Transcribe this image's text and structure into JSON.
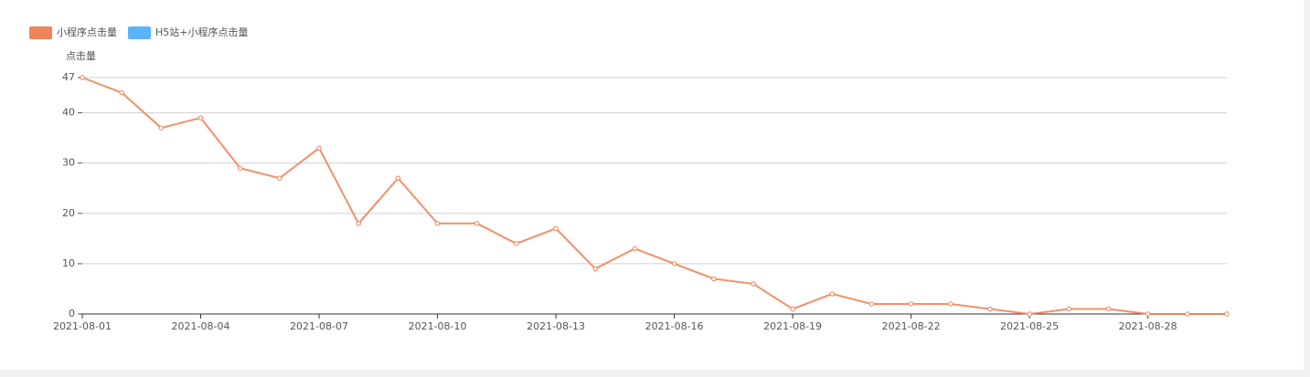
{
  "chart_data": {
    "type": "line",
    "y_label": "点击量",
    "categories": [
      "2021-08-01",
      null,
      null,
      "2021-08-04",
      null,
      null,
      "2021-08-07",
      null,
      null,
      "2021-08-10",
      null,
      null,
      "2021-08-13",
      null,
      null,
      "2021-08-16",
      null,
      null,
      "2021-08-19",
      null,
      null,
      "2021-08-22",
      null,
      null,
      "2021-08-25",
      null,
      null,
      "2021-08-28",
      null,
      null
    ],
    "series": [
      {
        "name": "小程序点击量",
        "color": "#f0845a",
        "values": [
          47,
          44,
          37,
          39,
          29,
          27,
          33,
          18,
          27,
          18,
          18,
          14,
          17,
          9,
          13,
          10,
          7,
          6,
          1,
          4,
          2,
          2,
          2,
          1,
          0,
          1,
          1,
          0,
          0,
          0
        ]
      },
      {
        "name": "H5站+小程序点击量",
        "color": "#58b4ff",
        "values": [
          null,
          null,
          null,
          null,
          null,
          null,
          null,
          null,
          null,
          null,
          null,
          null,
          null,
          null,
          null,
          null,
          null,
          null,
          null,
          null,
          null,
          null,
          null,
          null,
          null,
          null,
          null,
          null,
          null,
          null
        ]
      }
    ],
    "ylim": [
      0,
      47
    ],
    "yticks": [
      0,
      10,
      20,
      30,
      40,
      47
    ],
    "grid": true,
    "legend": "top-left"
  }
}
